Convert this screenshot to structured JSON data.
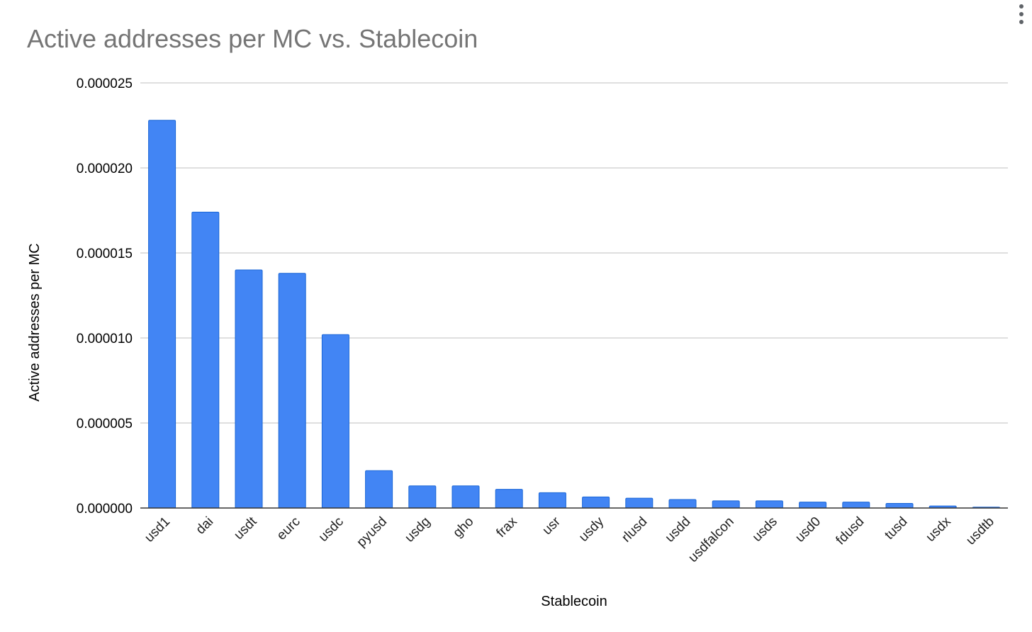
{
  "chart_data": {
    "type": "bar",
    "title": "Active addresses per MC vs. Stablecoin",
    "xlabel": "Stablecoin",
    "ylabel": "Active addresses per MC",
    "categories": [
      "usd1",
      "dai",
      "usdt",
      "eurc",
      "usdc",
      "pyusd",
      "usdg",
      "gho",
      "frax",
      "usr",
      "usdy",
      "rlusd",
      "usdd",
      "usdfalcon",
      "usds",
      "usd0",
      "fdusd",
      "tusd",
      "usdx",
      "usdtb"
    ],
    "values": [
      2.28e-05,
      1.74e-05,
      1.4e-05,
      1.38e-05,
      1.02e-05,
      2.2e-06,
      1.3e-06,
      1.3e-06,
      1.1e-06,
      9e-07,
      6.5e-07,
      5.8e-07,
      5e-07,
      4.2e-07,
      4.2e-07,
      3.5e-07,
      3.5e-07,
      2.7e-07,
      1.2e-07,
      5e-08
    ],
    "ylim": [
      0,
      2.5e-05
    ],
    "yticks": [
      0,
      5e-06,
      1e-05,
      1.5e-05,
      2e-05,
      2.5e-05
    ],
    "ytick_labels": [
      "0.000000",
      "0.000005",
      "0.000010",
      "0.000015",
      "0.000020",
      "0.000025"
    ],
    "grid": true,
    "legend": "none",
    "bar_color": "#4285f4"
  },
  "menu": {
    "icon": "more-vert-icon"
  }
}
